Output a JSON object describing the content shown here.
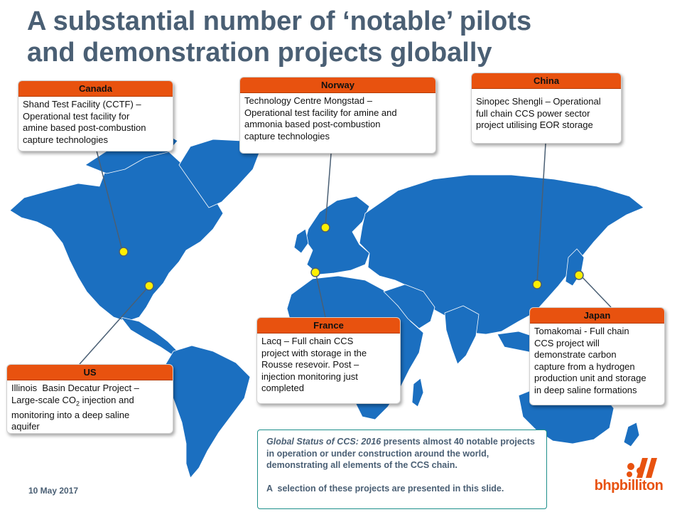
{
  "slide": {
    "title_line1": "A substantial number of ‘notable’ pilots",
    "title_line2": "and demonstration projects globally",
    "date": "10 May 2017",
    "logo_text": "bhpbilliton",
    "colors": {
      "title": "#4a5f74",
      "accent": "#e8520f",
      "land": "#1b6fc0",
      "marker": "#ffef00",
      "info_border": "#1d8f8b"
    }
  },
  "projects": [
    {
      "country": "Canada",
      "lines": [
        "Shand Test Facility (CCTF) –",
        "Operational test facility for",
        "amine based post-combustion",
        "capture technologies"
      ]
    },
    {
      "country": "Norway",
      "lines": [
        "Technology Centre Mongstad –",
        "Operational test facility for amine and",
        "ammonia based post-combustion",
        "capture technologies"
      ]
    },
    {
      "country": "China",
      "lines": [
        "Sinopec Shengli – Operational",
        "full chain CCS power sector",
        "project utilising EOR storage"
      ]
    },
    {
      "country": "US",
      "line1": "Illinois  Basin Decatur Project –",
      "line2_pre": "Large-scale CO",
      "line2_sub": "2",
      "line2_post": " injection and",
      "line3": "monitoring into a deep saline",
      "line4": "aquifer"
    },
    {
      "country": "France",
      "lines": [
        "Lacq – Full chain CCS",
        "project with storage in the",
        "Rousse resevoir. Post –",
        "injection monitoring just",
        "completed"
      ]
    },
    {
      "country": "Japan",
      "lines": [
        "Tomakomai - Full chain",
        "CCS project will",
        "demonstrate carbon",
        "capture from a hydrogen",
        "production unit and storage",
        "in deep saline formations"
      ]
    }
  ],
  "info": {
    "lead": "Global Status of CCS: 2016",
    "rest": " presents almost 40 notable projects in operation or under construction around the world, demonstrating all elements of the CCS chain.",
    "selection": "A  selection of these projects are presented in this slide."
  }
}
